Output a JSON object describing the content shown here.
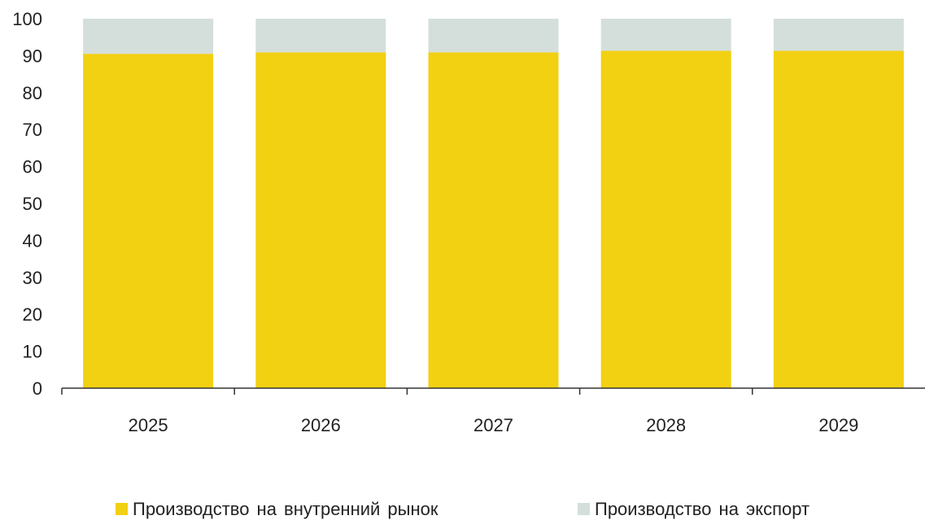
{
  "chart_data": {
    "type": "bar",
    "stacked": true,
    "categories": [
      "2025",
      "2026",
      "2027",
      "2028",
      "2029"
    ],
    "series": [
      {
        "name": "Производство на внутренний рынок",
        "values": [
          90.5,
          90.9,
          90.9,
          91.3,
          91.3
        ],
        "color": "#F2D012"
      },
      {
        "name": "Производство на экспорт",
        "values": [
          9.5,
          9.1,
          9.1,
          8.7,
          8.7
        ],
        "color": "#D4DFDB"
      }
    ],
    "title": "",
    "xlabel": "",
    "ylabel": "",
    "ylim": [
      0,
      100
    ],
    "yticks": [
      "0",
      "10",
      "20",
      "30",
      "40",
      "50",
      "60",
      "70",
      "80",
      "90",
      "100"
    ],
    "grid": false,
    "legend": "bottom"
  }
}
